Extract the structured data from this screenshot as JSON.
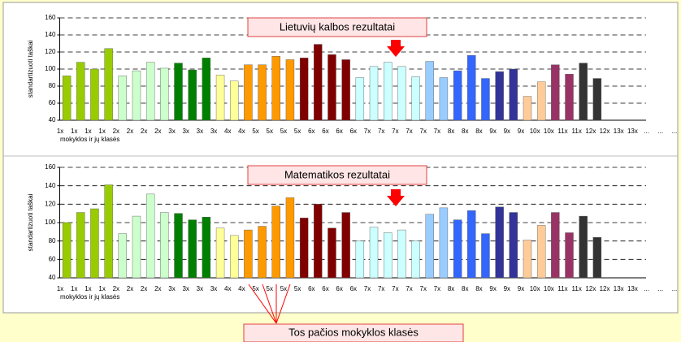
{
  "chart_data": [
    {
      "type": "bar",
      "title": "Lietuvių kalbos rezultatai",
      "ylabel": "standartizuoti taškai",
      "xlabel": "mokyklos ir jų klasės",
      "categories": [
        "1x",
        "1x",
        "1x",
        "1x",
        "2x",
        "2x",
        "2x",
        "2x",
        "3x",
        "3x",
        "3x",
        "3x",
        "4x",
        "4x",
        "5x",
        "5x",
        "5x",
        "5x",
        "6x",
        "6x",
        "6x",
        "6x",
        "7x",
        "7x",
        "7x",
        "7x",
        "7x",
        "7x",
        "8x",
        "8x",
        "8x",
        "9x",
        "9x",
        "9x",
        "10x",
        "10x",
        "11x",
        "11x",
        "12x",
        "12x",
        "13x",
        "13x",
        "...",
        "...",
        "...",
        "...",
        "...",
        "..."
      ],
      "values": [
        92,
        108,
        100,
        124,
        92,
        98,
        108,
        101,
        107,
        99,
        113,
        93,
        86,
        105,
        105,
        115,
        111,
        113,
        129,
        117,
        111,
        90,
        103,
        108,
        103,
        91,
        109,
        90,
        98,
        116,
        89,
        97,
        100,
        68,
        85,
        105,
        94,
        107,
        89,
        null,
        null,
        null,
        null,
        null,
        null,
        null,
        null,
        null
      ],
      "colors": [
        "#99cc00",
        "#99cc00",
        "#99cc00",
        "#99cc00",
        "#ccffcc",
        "#ccffcc",
        "#ccffcc",
        "#ccffcc",
        "#008000",
        "#008000",
        "#008000",
        "#ffff99",
        "#ffff99",
        "#ff9900",
        "#ff9900",
        "#ff9900",
        "#ff9900",
        "#800000",
        "#800000",
        "#800000",
        "#800000",
        "#ccffff",
        "#ccffff",
        "#ccffff",
        "#ccffff",
        "#ccffff",
        "#99ccff",
        "#99ccff",
        "#3366ff",
        "#3366ff",
        "#3366ff",
        "#333399",
        "#333399",
        "#ffcc99",
        "#ffcc99",
        "#993366",
        "#993366",
        "#333333",
        "#333333",
        null,
        null,
        null,
        null,
        null,
        null,
        null,
        null,
        null
      ],
      "ylim": [
        40,
        160
      ],
      "yticks": [
        40,
        60,
        80,
        100,
        120,
        140,
        160
      ],
      "grid": true
    },
    {
      "type": "bar",
      "title": "Matematikos rezultatai",
      "ylabel": "standartizuoti taškai",
      "xlabel": "mokyklos ir jų klasės",
      "categories": [
        "1x",
        "1x",
        "1x",
        "1x",
        "2x",
        "2x",
        "2x",
        "2x",
        "3x",
        "3x",
        "3x",
        "3x",
        "4x",
        "4x",
        "5x",
        "5x",
        "5x",
        "5x",
        "6x",
        "6x",
        "6x",
        "6x",
        "7x",
        "7x",
        "7x",
        "7x",
        "7x",
        "7x",
        "8x",
        "8x",
        "8x",
        "9x",
        "9x",
        "9x",
        "10x",
        "10x",
        "11x",
        "11x",
        "12x",
        "12x",
        "13x",
        "13x",
        "...",
        "...",
        "...",
        "...",
        "...",
        "..."
      ],
      "values": [
        100,
        111,
        115,
        141,
        88,
        107,
        131,
        111,
        110,
        103,
        106,
        94,
        86,
        92,
        96,
        118,
        127,
        105,
        120,
        94,
        111,
        80,
        95,
        89,
        92,
        80,
        109,
        116,
        103,
        113,
        88,
        117,
        111,
        81,
        97,
        111,
        89,
        107,
        84,
        null,
        null,
        null,
        null,
        null,
        null,
        null,
        null,
        null
      ],
      "colors": [
        "#99cc00",
        "#99cc00",
        "#99cc00",
        "#99cc00",
        "#ccffcc",
        "#ccffcc",
        "#ccffcc",
        "#ccffcc",
        "#008000",
        "#008000",
        "#008000",
        "#ffff99",
        "#ffff99",
        "#ff9900",
        "#ff9900",
        "#ff9900",
        "#ff9900",
        "#800000",
        "#800000",
        "#800000",
        "#800000",
        "#ccffff",
        "#ccffff",
        "#ccffff",
        "#ccffff",
        "#ccffff",
        "#99ccff",
        "#99ccff",
        "#3366ff",
        "#3366ff",
        "#3366ff",
        "#333399",
        "#333399",
        "#ffcc99",
        "#ffcc99",
        "#993366",
        "#993366",
        "#333333",
        "#333333",
        null,
        null,
        null,
        null,
        null,
        null,
        null,
        null,
        null
      ],
      "ylim": [
        40,
        160
      ],
      "yticks": [
        40,
        60,
        80,
        100,
        120,
        140,
        160
      ],
      "grid": true
    }
  ],
  "annotation": "Tos pačios mokyklos klasės"
}
